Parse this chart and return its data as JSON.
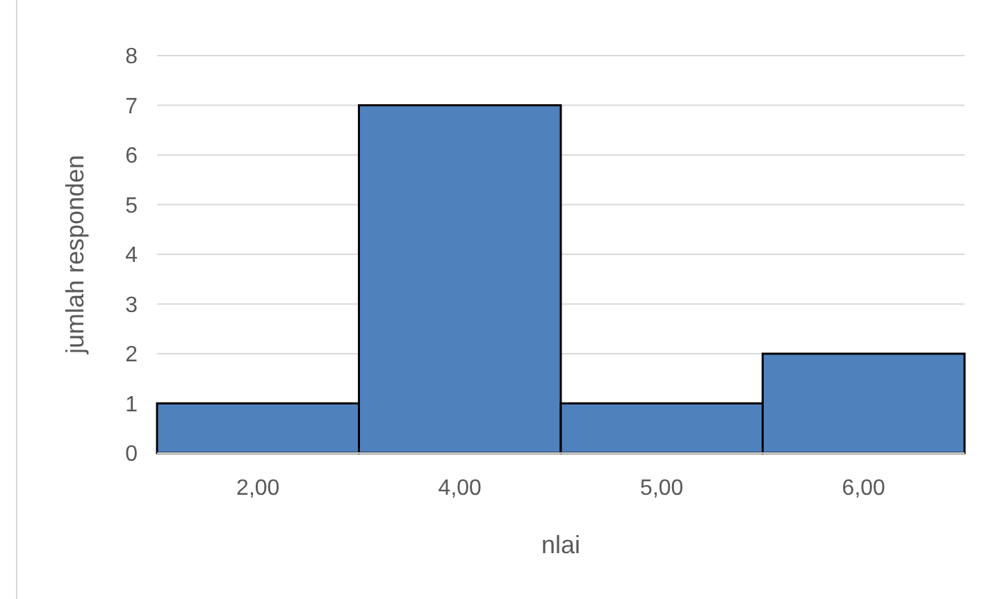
{
  "chart_data": {
    "type": "bar",
    "xlabel": "nlai",
    "ylabel": "jumlah responden",
    "categories": [
      "2,00",
      "4,00",
      "5,00",
      "6,00"
    ],
    "values": [
      1,
      7,
      1,
      2
    ],
    "color": "#4f81bd",
    "ylim": [
      0,
      8
    ],
    "yticks": [
      0,
      1,
      2,
      3,
      4,
      5,
      6,
      7,
      8
    ],
    "grid": "y"
  }
}
